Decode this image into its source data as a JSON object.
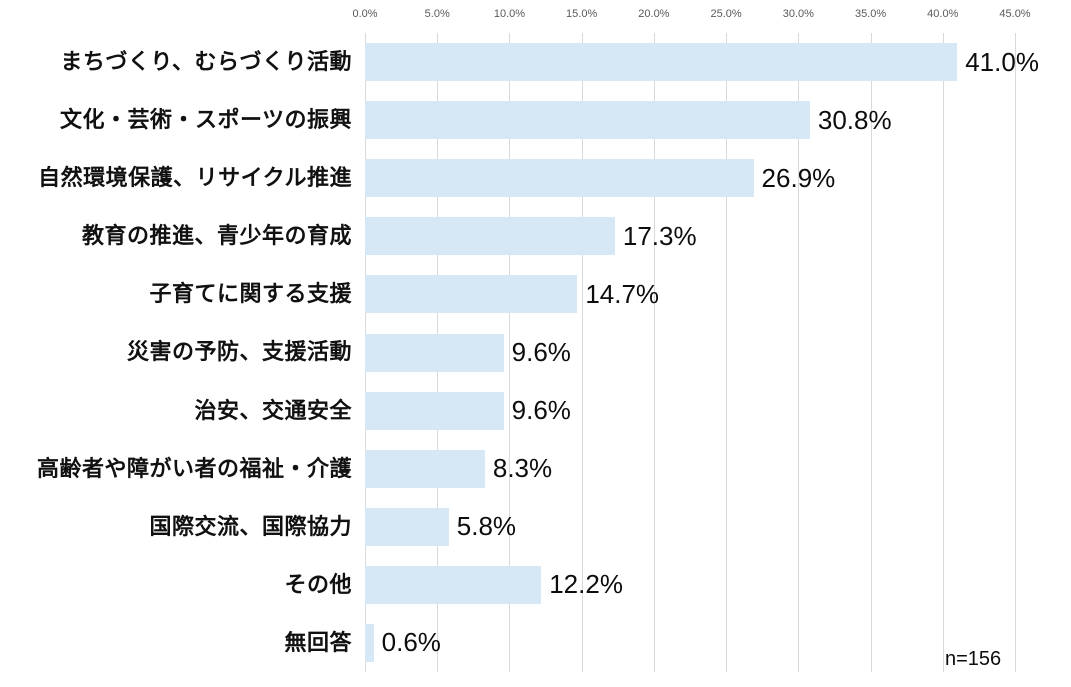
{
  "chart_data": {
    "type": "bar",
    "orientation": "horizontal",
    "title": "",
    "categories": [
      "まちづくり、むらづくり活動",
      "文化・芸術・スポーツの振興",
      "自然環境保護、リサイクル推進",
      "教育の推進、青少年の育成",
      "子育てに関する支援",
      "災害の予防、支援活動",
      "治安、交通安全",
      "高齢者や障がい者の福祉・介護",
      "国際交流、国際協力",
      "その他",
      "無回答"
    ],
    "values": [
      41.0,
      30.8,
      26.9,
      17.3,
      14.7,
      9.6,
      9.6,
      8.3,
      5.8,
      12.2,
      0.6
    ],
    "value_labels": [
      "41.0%",
      "30.8%",
      "26.9%",
      "17.3%",
      "14.7%",
      "9.6%",
      "9.6%",
      "8.3%",
      "5.8%",
      "12.2%",
      "0.6%"
    ],
    "x_ticks": [
      "0.0%",
      "5.0%",
      "10.0%",
      "15.0%",
      "20.0%",
      "25.0%",
      "30.0%",
      "35.0%",
      "40.0%",
      "45.0%"
    ],
    "xlim": [
      0,
      45
    ],
    "grid": "vertical",
    "legend": "none",
    "annotation": "n=156",
    "bar_color": "#d6e8f5",
    "gridline_color": "#d9d9d9",
    "tick_label_color": "#595959",
    "text_color": "#0d0d0d"
  }
}
